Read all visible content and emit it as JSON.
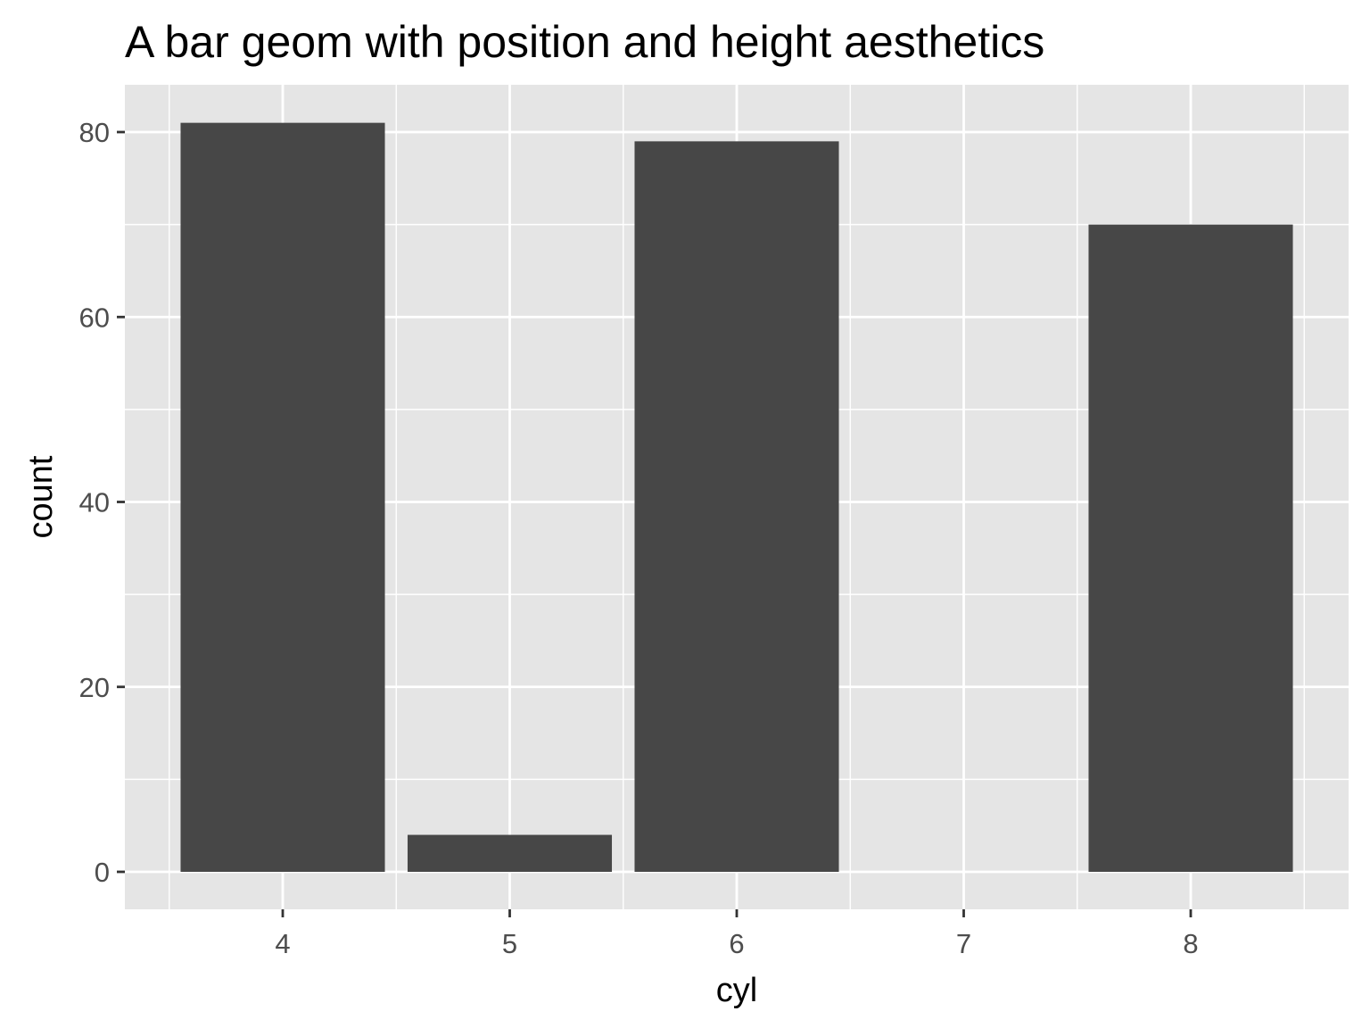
{
  "chart_data": {
    "type": "bar",
    "title": "A bar geom with position and height aesthetics",
    "xlabel": "cyl",
    "ylabel": "count",
    "x": [
      4,
      5,
      6,
      8
    ],
    "values": [
      81,
      4,
      79,
      70
    ],
    "bar_width": 0.9,
    "xlim": [
      3.5,
      8.5
    ],
    "ylim": [
      0,
      81
    ],
    "x_ticks": [
      4,
      5,
      6,
      7,
      8
    ],
    "x_tick_labels": [
      "4",
      "5",
      "6",
      "7",
      "8"
    ],
    "y_ticks": [
      0,
      20,
      40,
      60,
      80
    ],
    "y_tick_labels": [
      "0",
      "20",
      "40",
      "60",
      "80"
    ],
    "grid": true,
    "panel_background": "#e5e5e5",
    "grid_color": "#ffffff",
    "bar_color": "#474747",
    "tick_color": "#333333"
  }
}
